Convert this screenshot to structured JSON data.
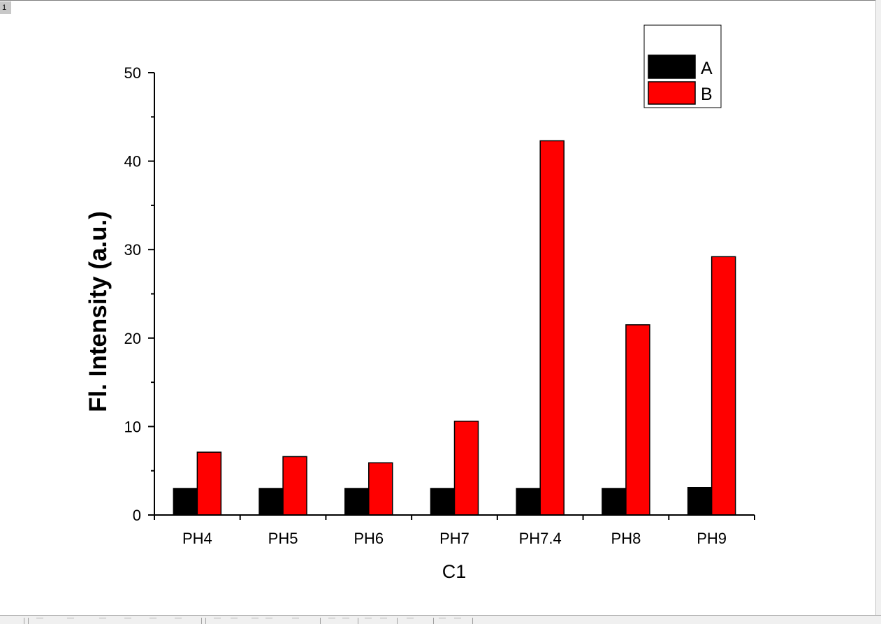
{
  "page": {
    "tab_label": "1"
  },
  "chart_data": {
    "type": "bar",
    "categories": [
      "PH4",
      "PH5",
      "PH6",
      "PH7",
      "PH7.4",
      "PH8",
      "PH9"
    ],
    "series": [
      {
        "name": "A",
        "color": "#000000",
        "values": [
          3.0,
          3.0,
          3.0,
          3.0,
          3.0,
          3.0,
          3.1
        ]
      },
      {
        "name": "B",
        "color": "#ff0000",
        "values": [
          7.1,
          6.6,
          5.9,
          10.6,
          42.3,
          21.5,
          29.2
        ]
      }
    ],
    "title": "",
    "xlabel": "C1",
    "ylabel": "Fl. Intensity (a.u.)",
    "ylim": [
      0,
      50
    ],
    "yticks": [
      "0",
      "10",
      "20",
      "30",
      "40",
      "50"
    ],
    "grid": false,
    "legend": "top-right"
  }
}
